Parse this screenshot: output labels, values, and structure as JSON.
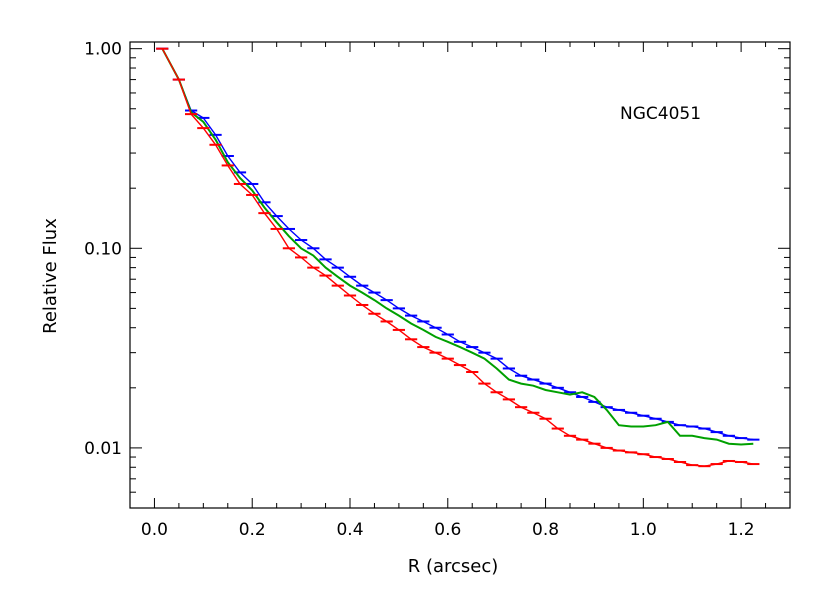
{
  "chart_data": {
    "type": "line",
    "title": "",
    "annotation": "NGC4051",
    "xlabel": "R (arcsec)",
    "ylabel": "Relative Flux",
    "xlim": [
      -0.05,
      1.3
    ],
    "ylim": [
      0.005,
      1.08
    ],
    "y_scale": "log",
    "x_ticks": [
      "0.0",
      "0.2",
      "0.4",
      "0.6",
      "0.8",
      "1.0",
      "1.2"
    ],
    "y_ticks": [
      "0.01",
      "0.10",
      "1.00"
    ],
    "grid": false,
    "legend": "none",
    "x": [
      0.016,
      0.05,
      0.075,
      0.1,
      0.125,
      0.15,
      0.175,
      0.2,
      0.225,
      0.25,
      0.275,
      0.3,
      0.325,
      0.35,
      0.375,
      0.4,
      0.425,
      0.45,
      0.475,
      0.5,
      0.525,
      0.55,
      0.575,
      0.6,
      0.625,
      0.65,
      0.675,
      0.7,
      0.725,
      0.75,
      0.775,
      0.8,
      0.825,
      0.85,
      0.875,
      0.9,
      0.925,
      0.95,
      0.975,
      1.0,
      1.025,
      1.05,
      1.075,
      1.1,
      1.125,
      1.15,
      1.175,
      1.2,
      1.225
    ],
    "series": [
      {
        "color": "#0000ff",
        "style": "steps",
        "values": [
          1.0,
          0.7,
          0.49,
          0.45,
          0.37,
          0.29,
          0.24,
          0.21,
          0.17,
          0.145,
          0.125,
          0.11,
          0.1,
          0.088,
          0.08,
          0.072,
          0.065,
          0.06,
          0.055,
          0.05,
          0.046,
          0.043,
          0.04,
          0.037,
          0.034,
          0.032,
          0.03,
          0.028,
          0.025,
          0.023,
          0.022,
          0.021,
          0.02,
          0.019,
          0.018,
          0.017,
          0.016,
          0.0155,
          0.015,
          0.0145,
          0.014,
          0.0135,
          0.013,
          0.0128,
          0.0125,
          0.012,
          0.0115,
          0.0112,
          0.011
        ]
      },
      {
        "color": "#00a000",
        "style": "line",
        "values": [
          1.0,
          0.7,
          0.48,
          0.43,
          0.35,
          0.27,
          0.225,
          0.195,
          0.16,
          0.135,
          0.115,
          0.1,
          0.092,
          0.08,
          0.072,
          0.065,
          0.06,
          0.055,
          0.05,
          0.046,
          0.042,
          0.039,
          0.036,
          0.034,
          0.032,
          0.03,
          0.028,
          0.025,
          0.022,
          0.021,
          0.0205,
          0.0195,
          0.019,
          0.0185,
          0.019,
          0.018,
          0.0155,
          0.013,
          0.0128,
          0.0128,
          0.013,
          0.0135,
          0.0115,
          0.0115,
          0.0112,
          0.011,
          0.0105,
          0.0104,
          0.0105
        ]
      },
      {
        "color": "#ff0000",
        "style": "steps",
        "values": [
          1.0,
          0.7,
          0.47,
          0.4,
          0.33,
          0.26,
          0.21,
          0.185,
          0.15,
          0.125,
          0.1,
          0.09,
          0.08,
          0.073,
          0.065,
          0.058,
          0.052,
          0.047,
          0.043,
          0.039,
          0.035,
          0.032,
          0.03,
          0.028,
          0.026,
          0.024,
          0.021,
          0.019,
          0.0175,
          0.016,
          0.015,
          0.014,
          0.0125,
          0.0115,
          0.011,
          0.0105,
          0.01,
          0.0097,
          0.0095,
          0.0093,
          0.009,
          0.0088,
          0.0085,
          0.0082,
          0.0081,
          0.0083,
          0.0086,
          0.0085,
          0.0083
        ]
      }
    ]
  }
}
